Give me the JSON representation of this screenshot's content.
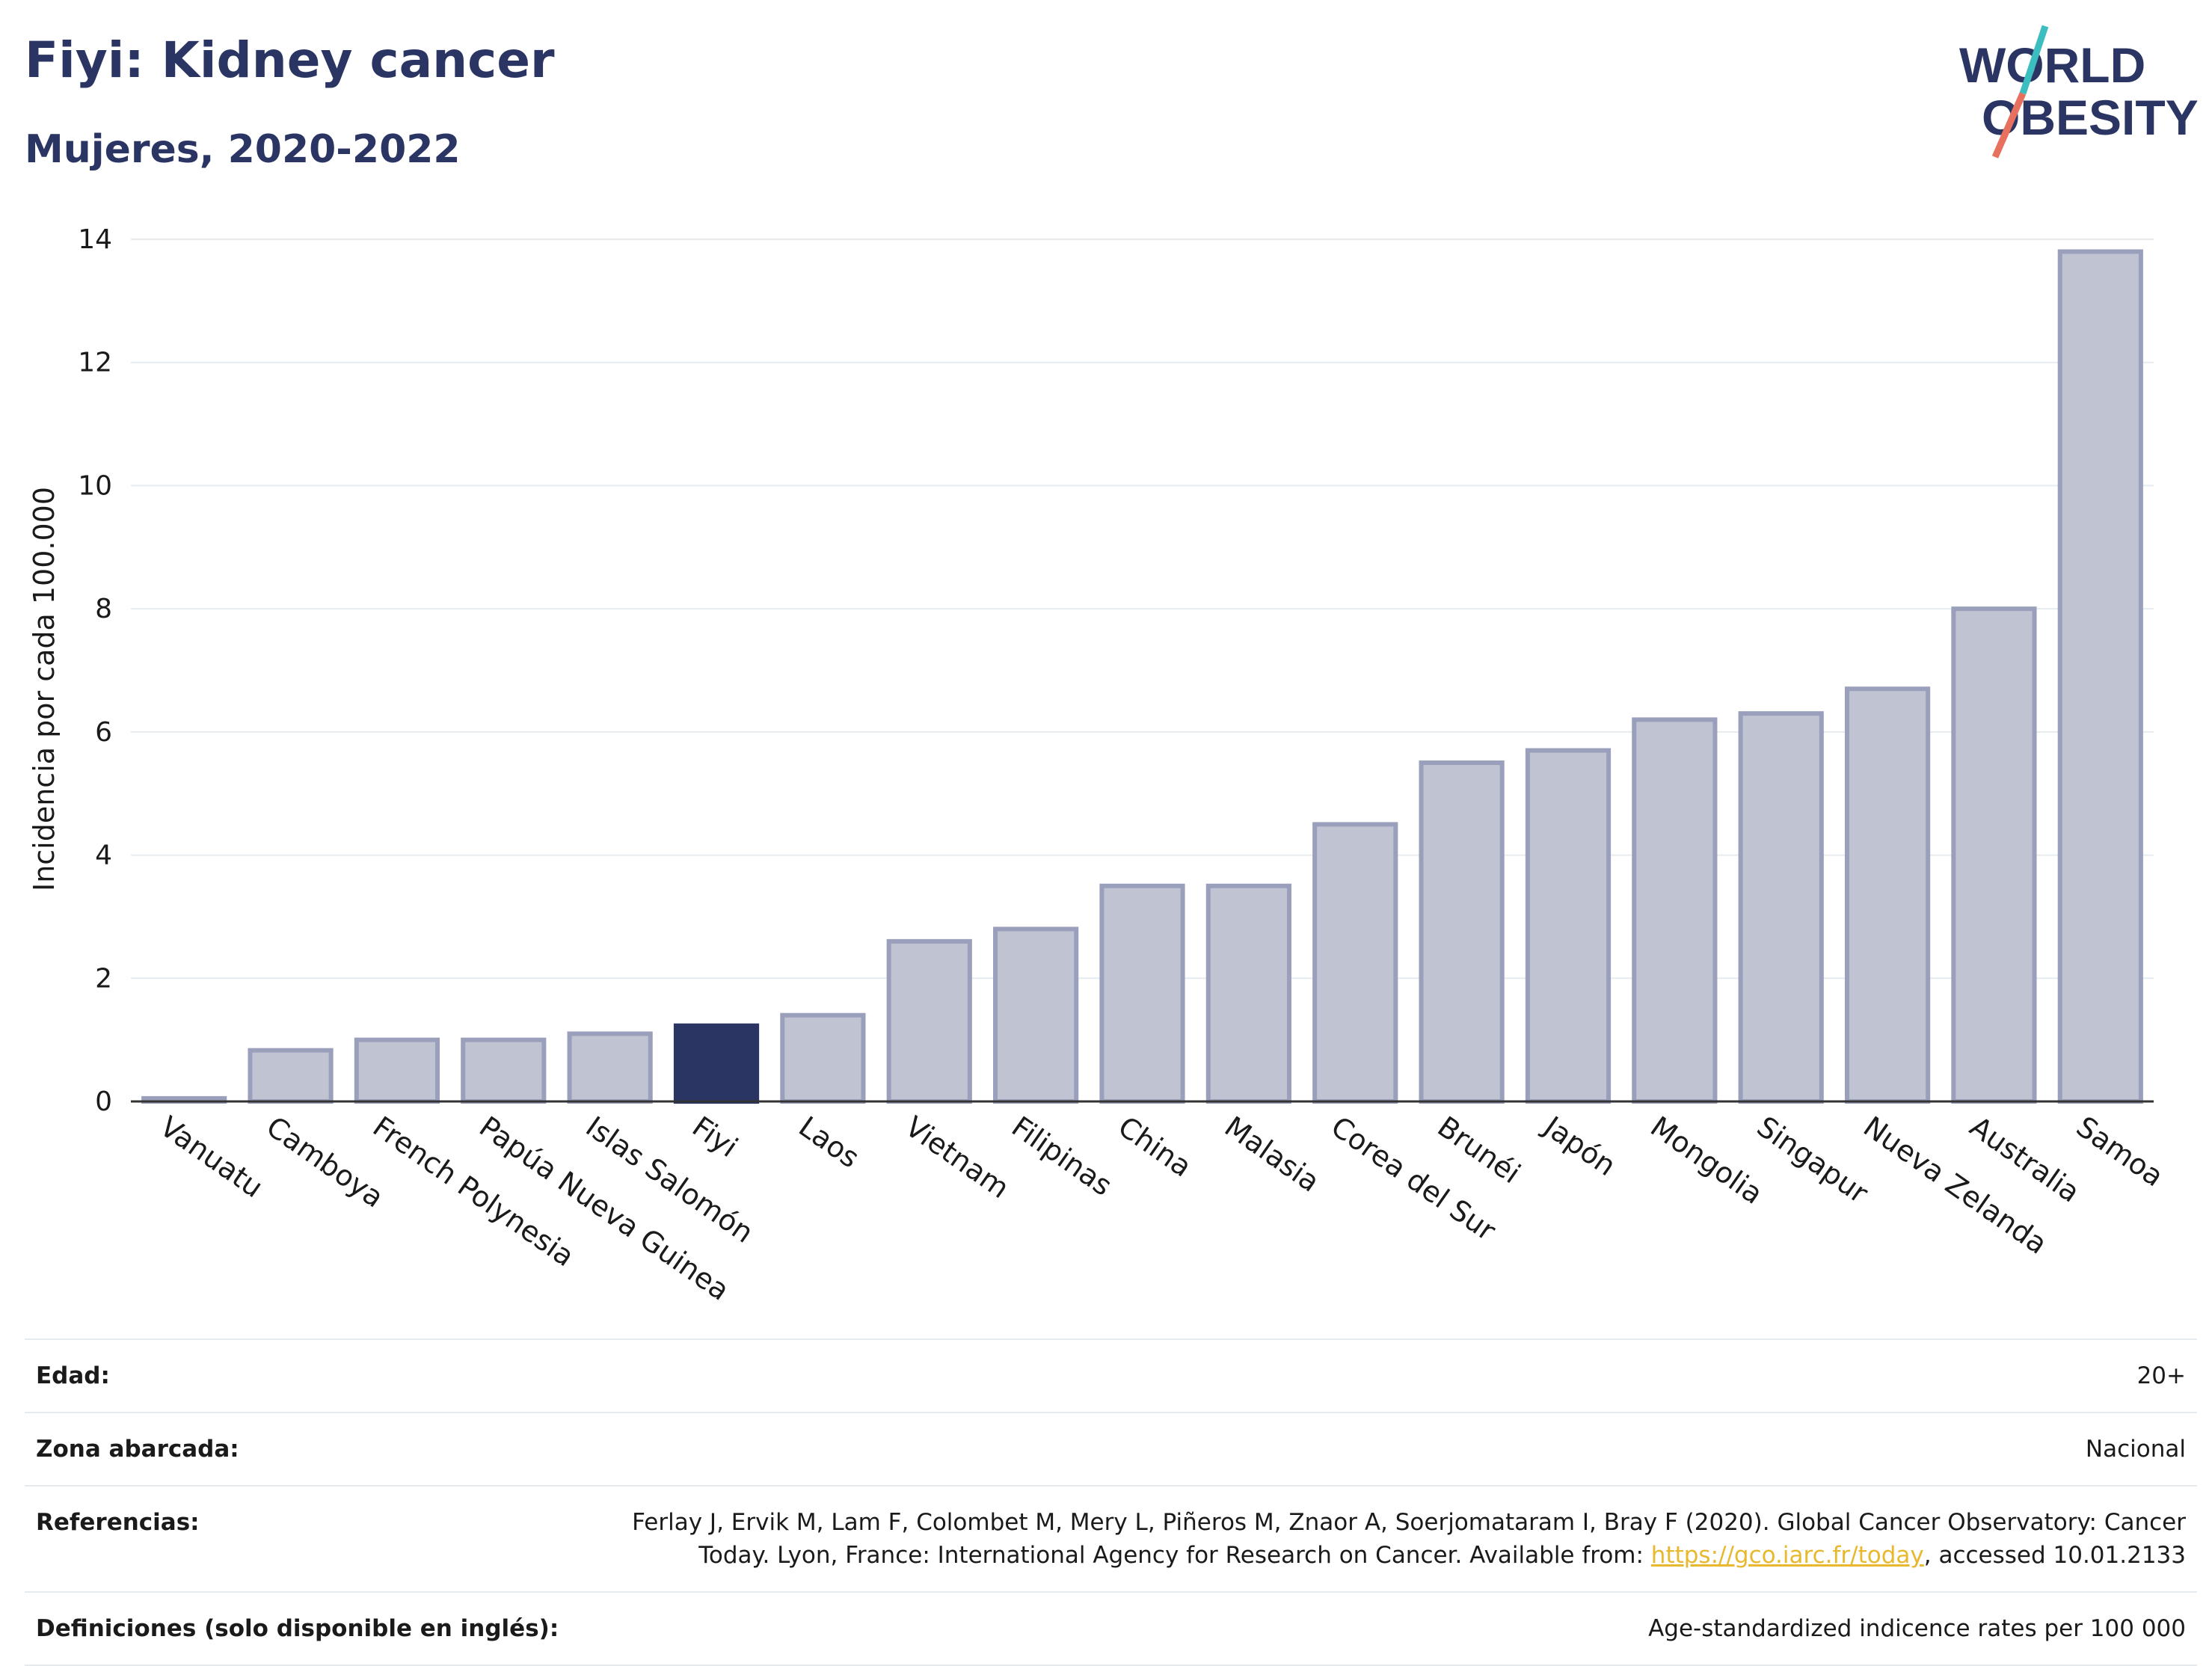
{
  "header": {
    "title": "Fiyi: Kidney cancer",
    "subtitle": "Mujeres, 2020-2022"
  },
  "logo": {
    "line1": "WORLD",
    "line2": "OBESITY",
    "colors": {
      "text": "#2a3563",
      "slash_top": "#3cbdbf",
      "slash_bottom": "#e8705e"
    }
  },
  "colors": {
    "bar": "#c0c3d2",
    "bar_border": "#9aa0bb",
    "bar_highlight": "#2a3563",
    "grid": "#e6ebef",
    "axis": "#333333",
    "text": "#1a1a1a"
  },
  "chart_data": {
    "type": "bar",
    "title": "",
    "xlabel": "",
    "ylabel": "Incidencia por cada 100.000",
    "ylim": [
      0,
      14
    ],
    "yticks": [
      0,
      2,
      4,
      6,
      8,
      10,
      12,
      14
    ],
    "grid": true,
    "highlight": "Fiyi",
    "categories": [
      "Vanuatu",
      "Camboya",
      "French Polynesia",
      "Papúa Nueva Guinea",
      "Islas Salomón",
      "Fiyi",
      "Laos",
      "Vietnam",
      "Filipinas",
      "China",
      "Malasia",
      "Corea del Sur",
      "Brunéi",
      "Japón",
      "Mongolia",
      "Singapur",
      "Nueva Zelanda",
      "Australia",
      "Samoa"
    ],
    "values": [
      0.05,
      0.83,
      1.0,
      1.0,
      1.1,
      1.23,
      1.4,
      2.6,
      2.8,
      3.5,
      3.5,
      4.5,
      5.5,
      5.7,
      6.2,
      6.3,
      6.7,
      8.0,
      13.8
    ]
  },
  "info": [
    {
      "label": "Edad:",
      "value": "20+"
    },
    {
      "label": "Zona abarcada:",
      "value": "Nacional"
    },
    {
      "label": "Referencias:",
      "value": "Ferlay J, Ervik M, Lam F, Colombet M, Mery L, Piñeros M, Znaor A, Soerjomataram I, Bray F (2020). Global Cancer Observatory: Cancer Today. Lyon, France: International Agency for Research on Cancer. Available from: ",
      "link": "https://gco.iarc.fr/today",
      "suffix": ", accessed 10.01.2133"
    },
    {
      "label": "Definiciones (solo disponible en inglés):",
      "value": "Age-standardized indicence rates per 100 000"
    }
  ]
}
